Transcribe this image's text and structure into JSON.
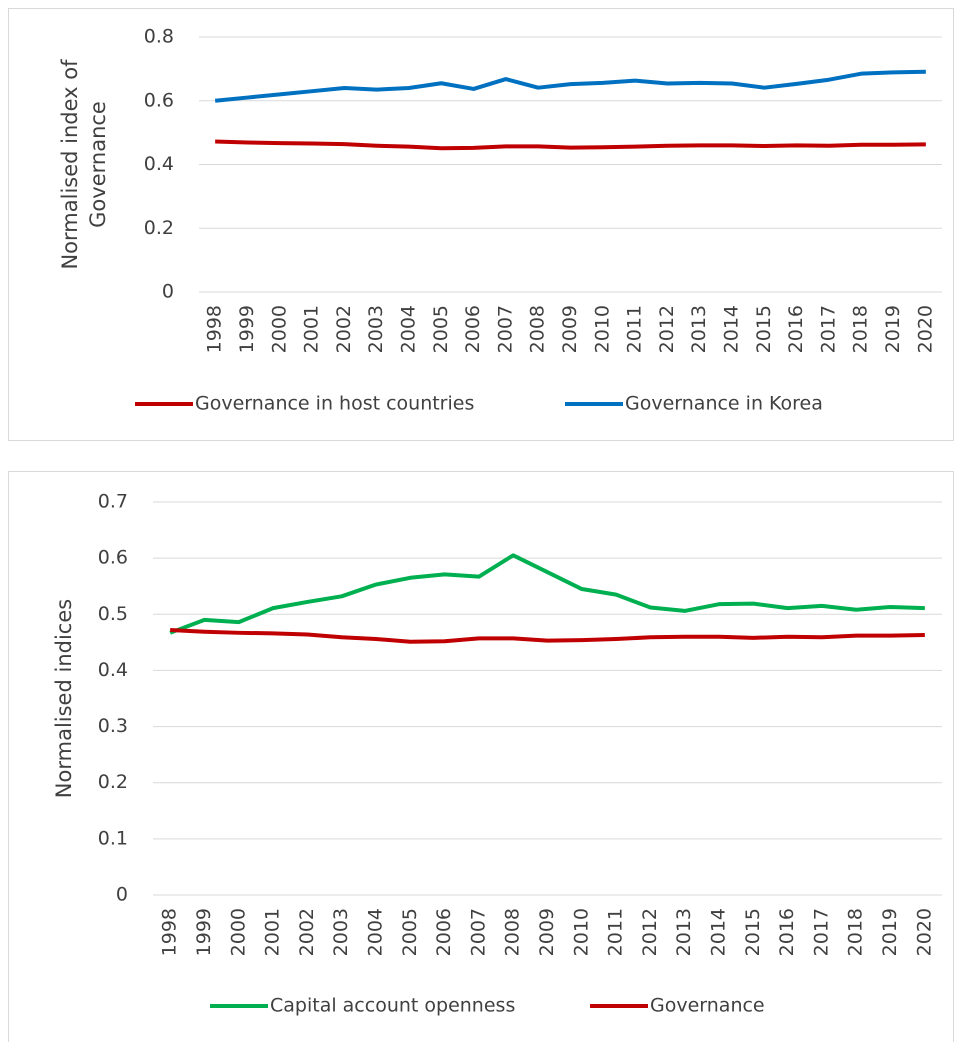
{
  "chart_data": [
    {
      "type": "line",
      "ylabel": [
        "Normalised index of",
        "Governance"
      ],
      "categories": [
        "1998",
        "1999",
        "2000",
        "2001",
        "2002",
        "2003",
        "2004",
        "2005",
        "2006",
        "2007",
        "2008",
        "2009",
        "2010",
        "2011",
        "2012",
        "2013",
        "2014",
        "2015",
        "2016",
        "2017",
        "2018",
        "2019",
        "2020"
      ],
      "series": [
        {
          "name": "Governance in host countries",
          "color": "#c00000",
          "values": [
            0.472,
            0.469,
            0.467,
            0.466,
            0.464,
            0.459,
            0.456,
            0.451,
            0.452,
            0.457,
            0.457,
            0.453,
            0.454,
            0.456,
            0.459,
            0.46,
            0.46,
            0.458,
            0.46,
            0.459,
            0.462,
            0.462,
            0.463
          ]
        },
        {
          "name": "Governance in Korea",
          "color": "#0070c0",
          "values": [
            0.6,
            0.61,
            0.62,
            0.63,
            0.64,
            0.635,
            0.64,
            0.655,
            0.637,
            0.668,
            0.641,
            0.652,
            0.656,
            0.663,
            0.654,
            0.656,
            0.654,
            0.641,
            0.653,
            0.666,
            0.685,
            0.689,
            0.691
          ]
        }
      ],
      "ylim": [
        0,
        0.8
      ],
      "yticks": [
        0,
        0.2,
        0.4,
        0.6,
        0.8
      ],
      "grid": true,
      "legend": "bottom"
    },
    {
      "type": "line",
      "ylabel": [
        "Normalised indices"
      ],
      "categories": [
        "1998",
        "1999",
        "2000",
        "2001",
        "2002",
        "2003",
        "2004",
        "2005",
        "2006",
        "2007",
        "2008",
        "2009",
        "2010",
        "2011",
        "2012",
        "2013",
        "2014",
        "2015",
        "2016",
        "2017",
        "2018",
        "2019",
        "2020"
      ],
      "series": [
        {
          "name": "Capital account openness",
          "color": "#00b050",
          "values": [
            0.467,
            0.49,
            0.486,
            0.511,
            0.522,
            0.532,
            0.553,
            0.565,
            0.571,
            0.567,
            0.605,
            0.575,
            0.545,
            0.535,
            0.512,
            0.506,
            0.518,
            0.519,
            0.511,
            0.515,
            0.508,
            0.513,
            0.511
          ]
        },
        {
          "name": "Governance",
          "color": "#c00000",
          "values": [
            0.472,
            0.469,
            0.467,
            0.466,
            0.464,
            0.459,
            0.456,
            0.451,
            0.452,
            0.457,
            0.457,
            0.453,
            0.454,
            0.456,
            0.459,
            0.46,
            0.46,
            0.458,
            0.46,
            0.459,
            0.462,
            0.462,
            0.463
          ]
        }
      ],
      "ylim": [
        0,
        0.7
      ],
      "yticks": [
        0,
        0.1,
        0.2,
        0.3,
        0.4,
        0.5,
        0.6,
        0.7
      ],
      "grid": true,
      "legend": "bottom"
    }
  ]
}
